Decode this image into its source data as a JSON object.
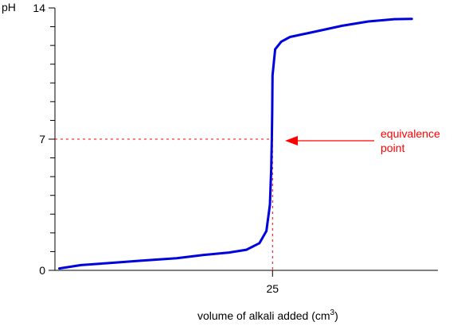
{
  "chart_data": {
    "type": "line",
    "xlabel": "volume of alkali added (cm",
    "xlabel_sup": "3",
    "xlabel_close": ")",
    "ylabel": "pH",
    "xlim": [
      0,
      44
    ],
    "ylim": [
      0,
      14
    ],
    "x_ticks": [
      25
    ],
    "x_tick_labels": [
      "25"
    ],
    "y_ticks": [
      0,
      7,
      14
    ],
    "y_tick_labels": [
      "0",
      "7",
      "14"
    ],
    "y_minor_ticks": [
      1,
      2,
      3,
      4,
      5,
      6,
      8,
      9,
      10,
      11,
      12,
      13
    ],
    "series": [
      {
        "color": "#0000dd",
        "points": [
          [
            0.5,
            0.1
          ],
          [
            3,
            0.28
          ],
          [
            6,
            0.38
          ],
          [
            10,
            0.52
          ],
          [
            14,
            0.65
          ],
          [
            17,
            0.82
          ],
          [
            20,
            0.95
          ],
          [
            22,
            1.1
          ],
          [
            23.5,
            1.45
          ],
          [
            24.3,
            2.1
          ],
          [
            24.7,
            3.5
          ],
          [
            24.85,
            5.5
          ],
          [
            24.92,
            7.0
          ],
          [
            24.96,
            8.5
          ],
          [
            25.0,
            10.4
          ],
          [
            25.3,
            11.8
          ],
          [
            26,
            12.2
          ],
          [
            27,
            12.45
          ],
          [
            30,
            12.75
          ],
          [
            33,
            13.05
          ],
          [
            36,
            13.28
          ],
          [
            39,
            13.4
          ],
          [
            41,
            13.42
          ]
        ]
      }
    ],
    "annotation": {
      "lines": [
        "equivalence",
        "point"
      ],
      "color": "#ff0000",
      "target_x": 25,
      "target_y": 7
    },
    "reference_lines": {
      "x": 25,
      "y": 7,
      "color": "#ff0000",
      "style": "dashed"
    }
  }
}
